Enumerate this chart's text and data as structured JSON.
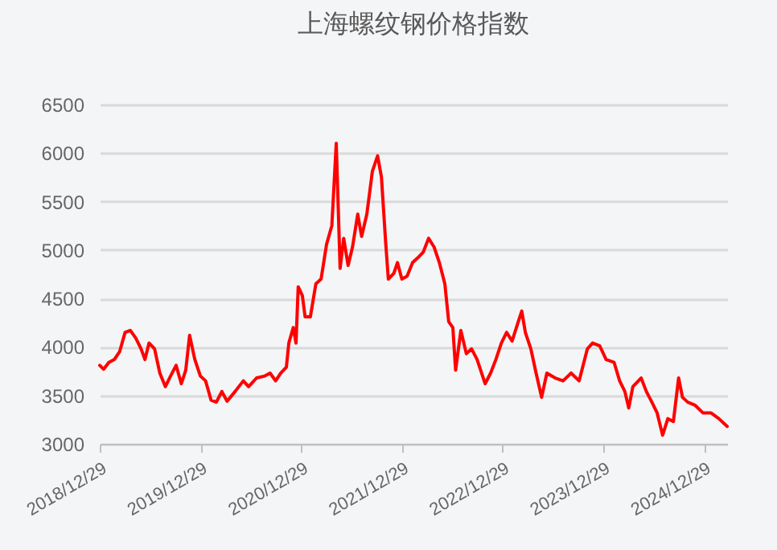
{
  "chart_data": {
    "type": "line",
    "title": "上海螺纹钢价格指数",
    "x": [
      "2018-12-29",
      "2019-01-12",
      "2019-01-31",
      "2019-02-20",
      "2019-03-11",
      "2019-03-31",
      "2019-04-19",
      "2019-05-09",
      "2019-05-28",
      "2019-06-11",
      "2019-06-26",
      "2019-07-16",
      "2019-08-04",
      "2019-08-24",
      "2019-09-12",
      "2019-10-02",
      "2019-10-21",
      "2019-11-06",
      "2019-11-20",
      "2019-12-09",
      "2019-12-29",
      "2020-01-17",
      "2020-02-06",
      "2020-02-25",
      "2020-03-16",
      "2020-04-04",
      "2020-05-03",
      "2020-06-02",
      "2020-06-21",
      "2020-07-20",
      "2020-08-19",
      "2020-09-07",
      "2020-09-27",
      "2020-10-16",
      "2020-11-05",
      "2020-11-14",
      "2020-11-30",
      "2020-12-10",
      "2020-12-18",
      "2021-01-02",
      "2021-01-12",
      "2021-01-31",
      "2021-02-20",
      "2021-03-11",
      "2021-03-31",
      "2021-04-19",
      "2021-05-05",
      "2021-05-19",
      "2021-06-01",
      "2021-06-17",
      "2021-07-03",
      "2021-07-22",
      "2021-08-05",
      "2021-08-24",
      "2021-09-13",
      "2021-10-02",
      "2021-10-16",
      "2021-10-31",
      "2021-11-10",
      "2021-11-30",
      "2021-12-13",
      "2021-12-29",
      "2022-01-17",
      "2022-02-06",
      "2022-02-25",
      "2022-03-17",
      "2022-04-05",
      "2022-04-25",
      "2022-05-14",
      "2022-06-03",
      "2022-06-17",
      "2022-07-02",
      "2022-07-12",
      "2022-07-31",
      "2022-08-20",
      "2022-09-08",
      "2022-09-28",
      "2022-10-27",
      "2022-11-16",
      "2022-12-05",
      "2022-12-25",
      "2023-01-13",
      "2023-02-02",
      "2023-02-21",
      "2023-03-09",
      "2023-03-22",
      "2023-04-11",
      "2023-04-30",
      "2023-05-20",
      "2023-06-08",
      "2023-07-08",
      "2023-08-06",
      "2023-09-04",
      "2023-10-03",
      "2023-11-02",
      "2023-11-21",
      "2023-12-17",
      "2024-01-09",
      "2024-02-07",
      "2024-02-27",
      "2024-03-17",
      "2024-03-31",
      "2024-04-15",
      "2024-05-15",
      "2024-06-03",
      "2024-06-23",
      "2024-07-12",
      "2024-08-01",
      "2024-08-20",
      "2024-09-09",
      "2024-09-28",
      "2024-10-12",
      "2024-10-31",
      "2024-11-26",
      "2024-12-25",
      "2025-01-23",
      "2025-02-21",
      "2025-03-23"
    ],
    "series": [
      {
        "color": "#ff0000",
        "values": [
          3810,
          3770,
          3840,
          3870,
          3950,
          4150,
          4170,
          4090,
          3980,
          3870,
          4040,
          3980,
          3730,
          3590,
          3700,
          3810,
          3620,
          3760,
          4120,
          3870,
          3700,
          3650,
          3450,
          3430,
          3540,
          3440,
          3540,
          3650,
          3590,
          3680,
          3700,
          3730,
          3650,
          3730,
          3790,
          4040,
          4200,
          4040,
          4620,
          4530,
          4310,
          4310,
          4650,
          4700,
          5060,
          5250,
          6100,
          4810,
          5120,
          4840,
          5030,
          5370,
          5140,
          5370,
          5810,
          5970,
          5750,
          5090,
          4700,
          4760,
          4870,
          4700,
          4730,
          4870,
          4920,
          4980,
          5120,
          5030,
          4870,
          4650,
          4260,
          4200,
          3760,
          4170,
          3930,
          3980,
          3870,
          3620,
          3730,
          3870,
          4040,
          4150,
          4060,
          4230,
          4370,
          4150,
          3980,
          3730,
          3480,
          3730,
          3680,
          3650,
          3730,
          3650,
          3980,
          4040,
          4010,
          3870,
          3840,
          3650,
          3540,
          3370,
          3590,
          3680,
          3540,
          3430,
          3320,
          3090,
          3260,
          3230,
          3680,
          3480,
          3430,
          3400,
          3320,
          3320,
          3260,
          3180
        ]
      }
    ],
    "xlim": [
      "2018-12-29",
      "2025-03-23"
    ],
    "xticks": [
      {
        "value": "2018-12-29",
        "label": "2018/12/29"
      },
      {
        "value": "2019-12-29",
        "label": "2019/12/29"
      },
      {
        "value": "2020-12-29",
        "label": "2020/12/29"
      },
      {
        "value": "2021-12-29",
        "label": "2021/12/29"
      },
      {
        "value": "2022-12-29",
        "label": "2022/12/29"
      },
      {
        "value": "2023-12-29",
        "label": "2023/12/29"
      },
      {
        "value": "2024-12-29",
        "label": "2024/12/29"
      }
    ],
    "ylim": [
      3000,
      6500
    ],
    "yticks": [
      3000,
      3500,
      4000,
      4500,
      5000,
      5500,
      6000,
      6500
    ],
    "grid": "y",
    "marker": "none",
    "line_style": "solid"
  }
}
